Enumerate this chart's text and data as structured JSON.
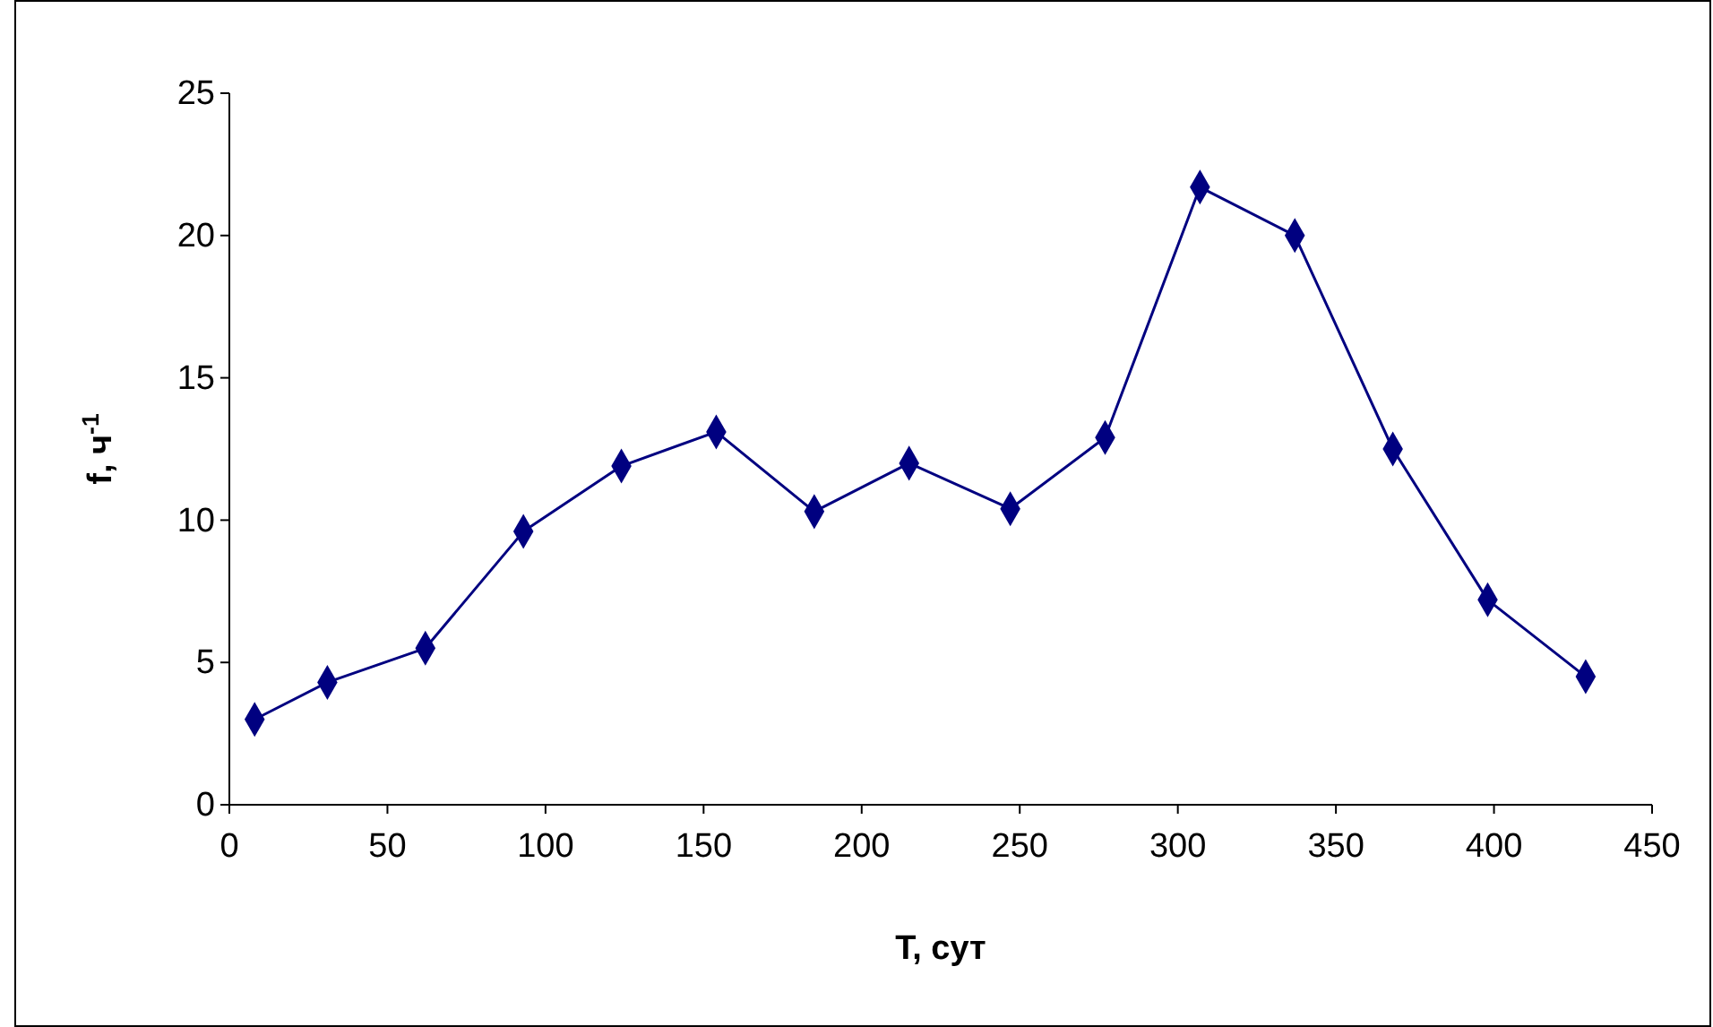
{
  "chart_data": {
    "type": "line",
    "xlabel": "T, сут",
    "ylabel": "f, ч$^{-1}$",
    "x": [
      8,
      31,
      62,
      93,
      124,
      154,
      185,
      215,
      247,
      277,
      307,
      337,
      368,
      398,
      429
    ],
    "series": [
      {
        "color": "#000080",
        "values": [
          3.0,
          4.3,
          5.5,
          9.6,
          11.9,
          13.1,
          10.3,
          12.0,
          10.4,
          12.9,
          21.7,
          20.0,
          12.5,
          7.2,
          4.5
        ]
      }
    ],
    "xlim": [
      0,
      450
    ],
    "xticks": [
      0,
      50,
      100,
      150,
      200,
      250,
      300,
      350,
      400,
      450
    ],
    "ylim": [
      0,
      25
    ],
    "yticks": [
      0,
      5,
      10,
      15,
      20,
      25
    ],
    "grid": false,
    "marker": "diamond",
    "line_style": "solid"
  }
}
